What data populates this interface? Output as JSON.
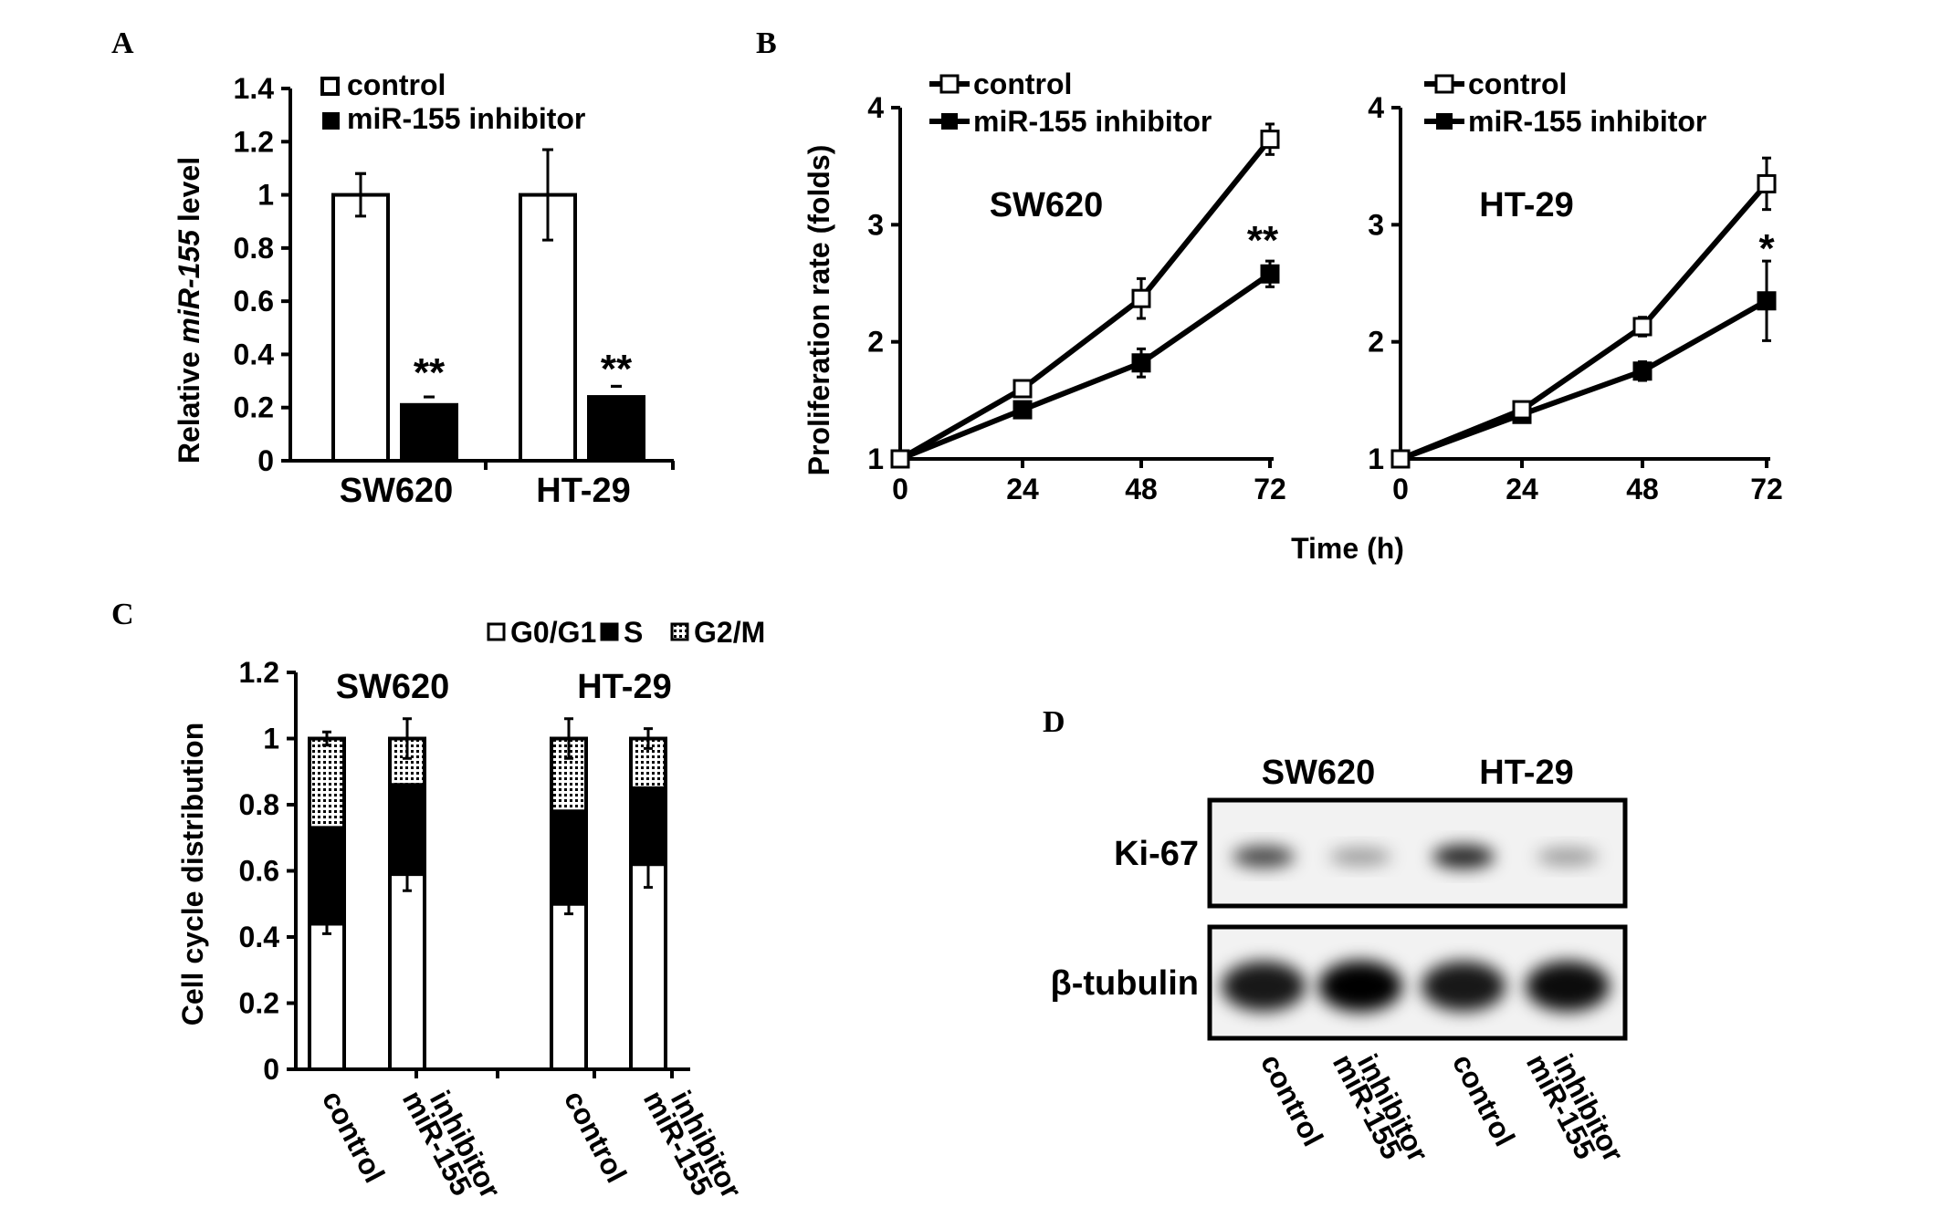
{
  "panels": {
    "a": {
      "letter": "A"
    },
    "b": {
      "letter": "B"
    },
    "c": {
      "letter": "C"
    },
    "d": {
      "letter": "D"
    }
  },
  "chart_data": [
    {
      "panel": "A",
      "type": "bar",
      "ylabel_prefix": "Relative ",
      "ylabel_italic": "miR-155",
      "ylabel_suffix": " level",
      "ylim": [
        0,
        1.4
      ],
      "yticks": [
        "0",
        "0.2",
        "0.4",
        "0.6",
        "0.8",
        "1",
        "1.2",
        "1.4"
      ],
      "categories": [
        "SW620",
        "HT-29"
      ],
      "series": [
        {
          "name": "control",
          "color": "#ffffff",
          "values": [
            1.0,
            1.0
          ],
          "errors": [
            0.08,
            0.17
          ]
        },
        {
          "name": "miR-155 inhibitor",
          "color": "#000000",
          "values": [
            0.21,
            0.24
          ],
          "errors": [
            0.03,
            0.04
          ]
        }
      ],
      "annotations": [
        "**",
        "**"
      ],
      "legend": "top-left"
    },
    {
      "panel": "B",
      "type": "line",
      "subplots": [
        {
          "cell_line": "SW620",
          "x": [
            0,
            24,
            48,
            72
          ],
          "series": [
            {
              "name": "control",
              "values": [
                1.0,
                1.6,
                2.37,
                3.73
              ],
              "errors": [
                0.03,
                0.05,
                0.17,
                0.13
              ]
            },
            {
              "name": "miR-155 inhibitor",
              "values": [
                1.0,
                1.42,
                1.82,
                2.58
              ],
              "errors": [
                0.03,
                0.05,
                0.12,
                0.11
              ]
            }
          ],
          "annotation": "**"
        },
        {
          "cell_line": "HT-29",
          "x": [
            0,
            24,
            48,
            72
          ],
          "series": [
            {
              "name": "control",
              "values": [
                1.0,
                1.42,
                2.13,
                3.35
              ],
              "errors": [
                0.03,
                0.04,
                0.08,
                0.22
              ]
            },
            {
              "name": "miR-155 inhibitor",
              "values": [
                1.0,
                1.38,
                1.75,
                2.35
              ],
              "errors": [
                0.03,
                0.04,
                0.08,
                0.34
              ]
            }
          ],
          "annotation": "*"
        }
      ],
      "ylabel": "Proliferation rate (folds)",
      "xlabel": "Time (h)",
      "ylim": [
        1,
        4
      ],
      "yticks": [
        "1",
        "2",
        "3",
        "4"
      ],
      "xticks": [
        "0",
        "24",
        "48",
        "72"
      ],
      "legend": "top-left"
    },
    {
      "panel": "C",
      "type": "bar",
      "stacked": true,
      "ylabel": "Cell cycle distribution",
      "ylim": [
        0,
        1.2
      ],
      "yticks": [
        "0",
        "0.2",
        "0.4",
        "0.6",
        "0.8",
        "1",
        "1.2"
      ],
      "groups": [
        {
          "cell_line": "SW620",
          "categories": [
            "control",
            "miR-155 inhibitor"
          ]
        },
        {
          "cell_line": "HT-29",
          "categories": [
            "control",
            "miR-155 inhibitor"
          ]
        }
      ],
      "series": [
        {
          "name": "G0/G1",
          "values": [
            0.44,
            0.59,
            0.5,
            0.62
          ],
          "errors": [
            0.03,
            0.05,
            0.03,
            0.07
          ]
        },
        {
          "name": "S",
          "values": [
            0.29,
            0.27,
            0.28,
            0.23
          ]
        },
        {
          "name": "G2/M",
          "values": [
            0.27,
            0.14,
            0.22,
            0.15
          ],
          "errors": [
            0.02,
            0.06,
            0.06,
            0.03
          ]
        }
      ],
      "legend": "top-right"
    }
  ],
  "blot": {
    "cell_lines": [
      "SW620",
      "HT-29"
    ],
    "rows": [
      "Ki-67",
      "β-tubulin"
    ],
    "lanes": [
      {
        "line1": "control",
        "line2": ""
      },
      {
        "line1": "miR-155",
        "line2": "inhibitor"
      },
      {
        "line1": "control",
        "line2": ""
      },
      {
        "line1": "miR-155",
        "line2": "inhibitor"
      }
    ],
    "ki67_intensity": [
      0.7,
      0.35,
      0.85,
      0.35
    ],
    "tubulin_intensity": [
      0.9,
      1.0,
      0.9,
      0.95
    ]
  }
}
